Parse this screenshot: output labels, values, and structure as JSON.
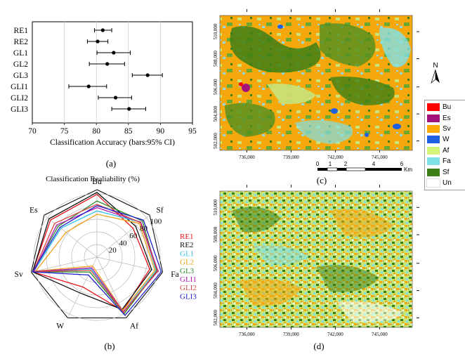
{
  "chart_data": [
    {
      "type": "errorbar",
      "panel_label": "(a)",
      "categories": [
        "RE1",
        "RE2",
        "GL1",
        "GL2",
        "GL3",
        "GLI1",
        "GLI2",
        "GLI3"
      ],
      "values": [
        81.0,
        80.2,
        82.7,
        81.7,
        88.0,
        78.8,
        83.0,
        85.1
      ],
      "ci_low": [
        79.7,
        78.6,
        80.1,
        78.9,
        85.6,
        75.7,
        80.3,
        82.4
      ],
      "ci_high": [
        82.4,
        81.8,
        85.3,
        84.4,
        90.3,
        81.6,
        85.5,
        87.7
      ],
      "xlabel": "Classification Accuracy (bars:95% CI)",
      "xlim": [
        70,
        95
      ],
      "xticks": [
        "70",
        "75",
        "80",
        "85",
        "90",
        "95"
      ],
      "grid": "vertical"
    },
    {
      "type": "radar",
      "panel_label": "(b)",
      "title": "Classification Realiability (%)",
      "axes": [
        "Bu",
        "Sf",
        "Fa",
        "Af",
        "W",
        "Sv",
        "Es"
      ],
      "rings": [
        "20",
        "40",
        "60",
        "80",
        "100"
      ],
      "series": [
        {
          "name": "RE1",
          "color": "#e8141c",
          "values": [
            95,
            70,
            82,
            90,
            50,
            100,
            90
          ]
        },
        {
          "name": "RE2",
          "color": "#111111",
          "values": [
            98,
            75,
            85,
            88,
            60,
            100,
            93
          ]
        },
        {
          "name": "GL1",
          "color": "#33c1e8",
          "values": [
            70,
            85,
            92,
            92,
            20,
            98,
            70
          ]
        },
        {
          "name": "GL2",
          "color": "#f2a21d",
          "values": [
            65,
            82,
            90,
            90,
            15,
            95,
            60
          ]
        },
        {
          "name": "GL3",
          "color": "#2e8b2e",
          "values": [
            85,
            88,
            93,
            95,
            25,
            100,
            75
          ]
        },
        {
          "name": "GLI1",
          "color": "#b01ab0",
          "values": [
            75,
            85,
            95,
            92,
            18,
            98,
            78
          ]
        },
        {
          "name": "GLI2",
          "color": "#d64545",
          "values": [
            80,
            84,
            94,
            93,
            22,
            99,
            82
          ]
        },
        {
          "name": "GLI3",
          "color": "#2222cc",
          "values": [
            78,
            90,
            100,
            98,
            30,
            100,
            72
          ]
        }
      ]
    },
    {
      "type": "map",
      "panel_label": "(c)",
      "x_ticks": [
        "736,000",
        "739,000",
        "742,000",
        "745,000"
      ],
      "y_ticks": [
        "510,000",
        "508,000",
        "506,000",
        "504,000",
        "502,000"
      ],
      "scale_labels": [
        "0",
        "1",
        "2",
        "4",
        "6"
      ],
      "scale_unit": "Km",
      "north_label": "N"
    },
    {
      "type": "map",
      "panel_label": "(d)",
      "x_ticks": [
        "736,000",
        "739,000",
        "742,000",
        "745,000"
      ],
      "y_ticks": [
        "510,000",
        "508,000",
        "506,000",
        "504,000",
        "502,000"
      ]
    }
  ],
  "map_legend": [
    {
      "label": "Bu",
      "color": "#ff0000"
    },
    {
      "label": "Es",
      "color": "#a3127a"
    },
    {
      "label": "Sv",
      "color": "#ffaa00"
    },
    {
      "label": "W",
      "color": "#1f5fe0"
    },
    {
      "label": "Af",
      "color": "#d3f57a"
    },
    {
      "label": "Fa",
      "color": "#7fe0e8"
    },
    {
      "label": "Sf",
      "color": "#3d7f16"
    },
    {
      "label": "Un",
      "color": "#ffffff"
    }
  ]
}
